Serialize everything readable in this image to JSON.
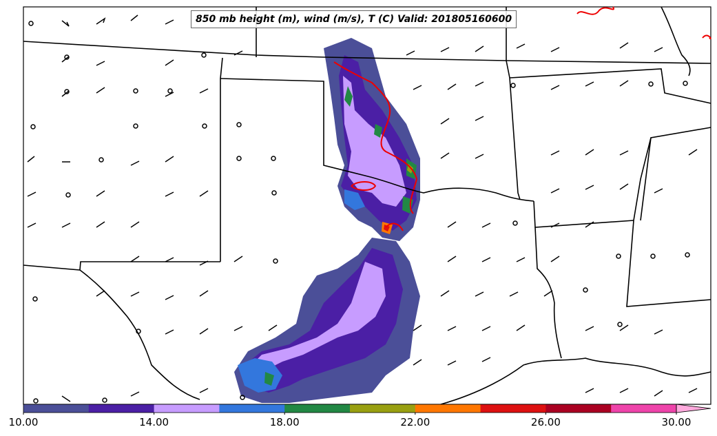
{
  "title": "850 mb height (m), wind (m/s), T (C) Valid: 201805160600",
  "colorbar": {
    "ticks": [
      "10.00",
      "14.00",
      "18.00",
      "22.00",
      "26.00",
      "30.00"
    ],
    "tick_values": [
      10,
      14,
      18,
      22,
      26,
      30
    ],
    "range": [
      10,
      31
    ],
    "colors": [
      "#4b4f98",
      "#4b1fa5",
      "#c79cff",
      "#3377dd",
      "#228844",
      "#99a011",
      "#ff7700",
      "#dd1111",
      "#aa0022",
      "#ee44aa",
      "#ffaadd"
    ],
    "extend": "max"
  },
  "map": {
    "region": "Southern Plains, United States",
    "features": [
      "state borders",
      "Gulf coastline",
      "wind barbs",
      "red temperature contours",
      "filled precipitation-style shading"
    ]
  }
}
